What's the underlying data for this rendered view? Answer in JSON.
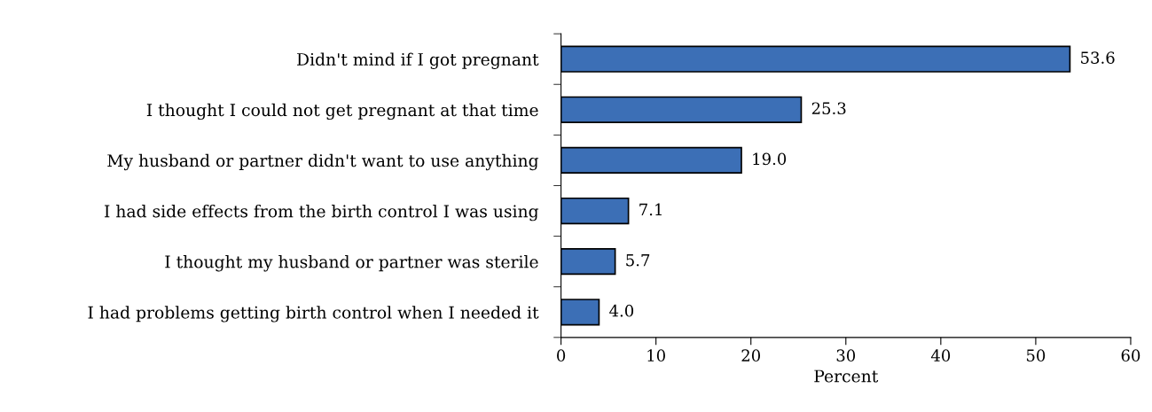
{
  "chart_data": {
    "type": "bar",
    "orientation": "horizontal",
    "xlabel": "Percent",
    "categories": [
      "Didn't mind if I got pregnant",
      "I thought I could not get pregnant at that time",
      "My husband or partner didn't want to use anything",
      "I had side effects from the birth control I was using",
      "I thought my husband or partner was sterile",
      "I had problems getting birth control when I needed it"
    ],
    "values": [
      53.6,
      25.3,
      19.0,
      7.1,
      5.7,
      4.0
    ],
    "color": "#3c6fb6",
    "xlim": [
      0,
      60
    ],
    "xticks": [
      0,
      10,
      20,
      30,
      40,
      50,
      60
    ],
    "value_labels": [
      "53.6",
      "25.3",
      "19.0",
      "7.1",
      "5.7",
      "4.0"
    ],
    "grid": false
  }
}
